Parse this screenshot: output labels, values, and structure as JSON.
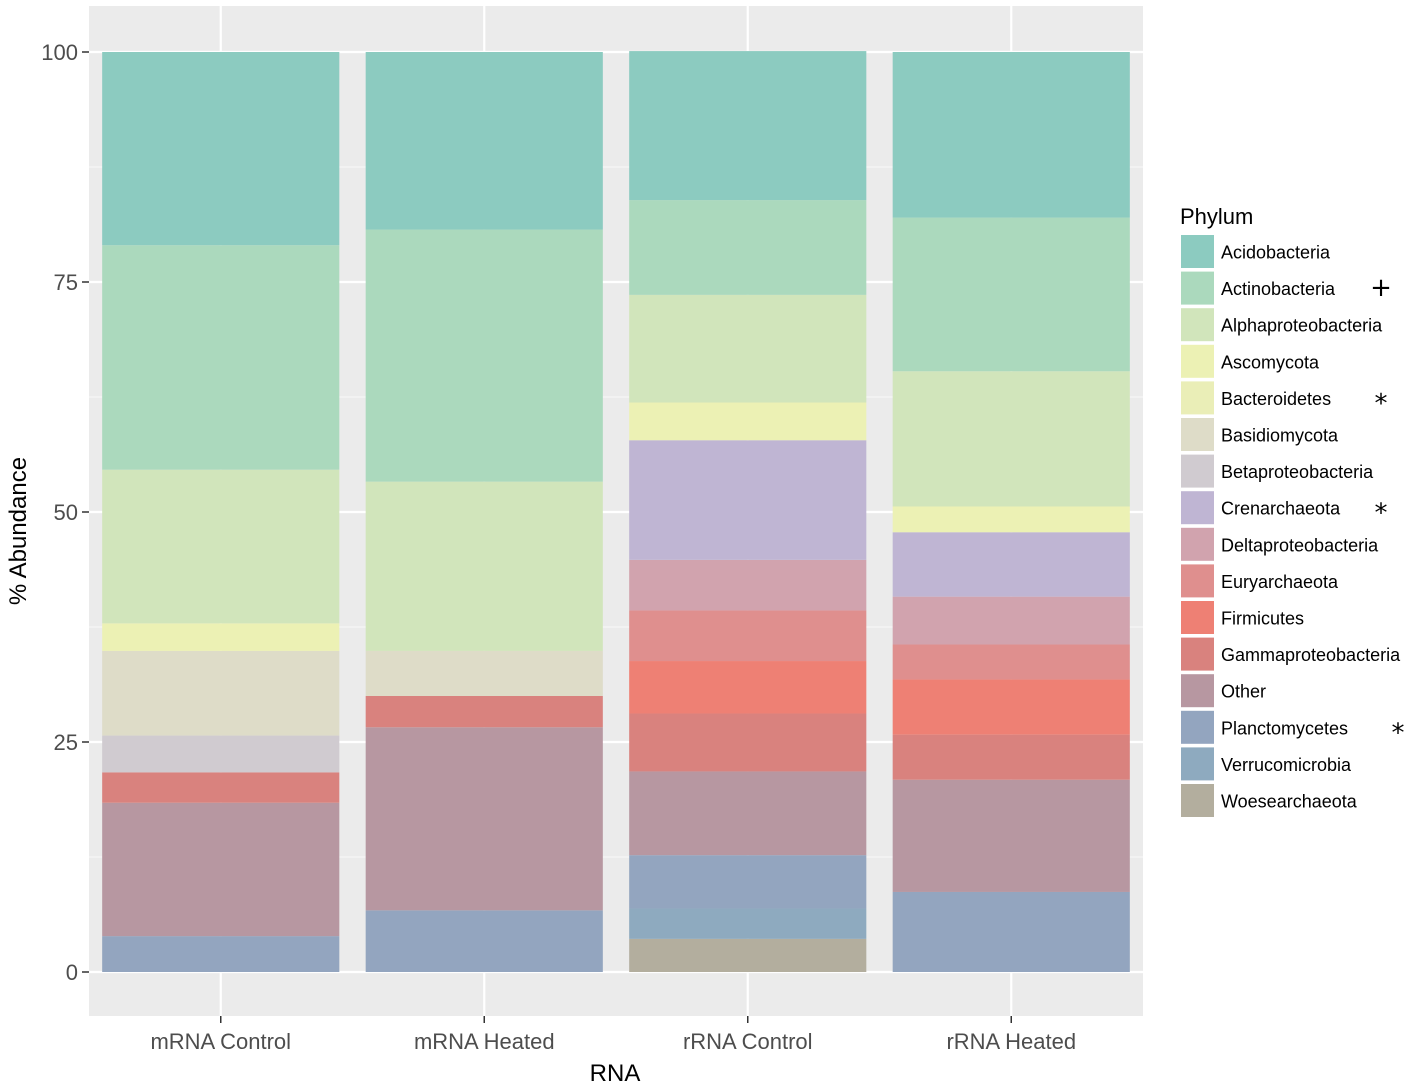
{
  "chart_data": {
    "type": "bar",
    "stacked": true,
    "title": "",
    "xlabel": "RNA",
    "ylabel": "% Abundance",
    "ylim": [
      -5,
      103
    ],
    "yticks": [
      0,
      25,
      50,
      75,
      100
    ],
    "grid": true,
    "categories": [
      "mRNA Control",
      "mRNA Heated",
      "rRNA Control",
      "rRNA Heated"
    ],
    "legend": {
      "title": "Phylum",
      "placement": "right"
    },
    "series": [
      {
        "name": "Woesearchaeota",
        "color": "#b3ae9e",
        "mark": "",
        "values": [
          0,
          0,
          3.6,
          0
        ]
      },
      {
        "name": "Verrucomicrobia",
        "color": "#8eaabf",
        "mark": "",
        "values": [
          0,
          0,
          3.3,
          0
        ]
      },
      {
        "name": "Planctomycetes",
        "color": "#93a5bf",
        "mark": "*",
        "values": [
          3.9,
          6.7,
          5.8,
          8.7
        ]
      },
      {
        "name": "Other",
        "color": "#b797a1",
        "mark": "",
        "values": [
          14.5,
          19.9,
          9.1,
          12.2
        ]
      },
      {
        "name": "Gammaproteobacteria",
        "color": "#d9827e",
        "mark": "",
        "values": [
          3.3,
          3.4,
          6.3,
          4.9
        ]
      },
      {
        "name": "Firmicutes",
        "color": "#ee8074",
        "mark": "",
        "values": [
          0,
          0,
          5.7,
          6.0
        ]
      },
      {
        "name": "Euryarchaeota",
        "color": "#df8f8e",
        "mark": "",
        "values": [
          0,
          0,
          5.5,
          3.8
        ]
      },
      {
        "name": "Deltaproteobacteria",
        "color": "#d1a3ae",
        "mark": "",
        "values": [
          0,
          0,
          5.5,
          5.2
        ]
      },
      {
        "name": "Crenarchaeota",
        "color": "#bfb5d3",
        "mark": "*",
        "values": [
          0,
          0,
          13.0,
          7.0
        ]
      },
      {
        "name": "Betaproteobacteria",
        "color": "#d0cbd0",
        "mark": "",
        "values": [
          4.0,
          0,
          0,
          0
        ]
      },
      {
        "name": "Basidiomycota",
        "color": "#dedcc8",
        "mark": "",
        "values": [
          9.2,
          4.9,
          0,
          0
        ]
      },
      {
        "name": "Bacteroidetes",
        "color": "#eaeeb7",
        "mark": "*",
        "values": [
          0,
          0,
          0,
          0
        ]
      },
      {
        "name": "Ascomycota",
        "color": "#ecf1b4",
        "mark": "",
        "values": [
          3.0,
          0,
          4.1,
          2.8
        ]
      },
      {
        "name": "Alphaproteobacteria",
        "color": "#d1e5bb",
        "mark": "",
        "values": [
          16.7,
          18.4,
          11.7,
          14.7
        ]
      },
      {
        "name": "Actinobacteria",
        "color": "#abd9bd",
        "mark": "+",
        "values": [
          24.4,
          27.4,
          10.3,
          16.7
        ]
      },
      {
        "name": "Acidobacteria",
        "color": "#8ccbc0",
        "mark": "",
        "values": [
          21.0,
          19.3,
          16.2,
          18.0
        ]
      }
    ],
    "legend_order": [
      "Acidobacteria",
      "Actinobacteria",
      "Alphaproteobacteria",
      "Ascomycota",
      "Bacteroidetes",
      "Basidiomycota",
      "Betaproteobacteria",
      "Crenarchaeota",
      "Deltaproteobacteria",
      "Euryarchaeota",
      "Firmicutes",
      "Gammaproteobacteria",
      "Other",
      "Planctomycetes",
      "Verrucomicrobia",
      "Woesearchaeota"
    ]
  },
  "colors": {
    "panel_background": "#ebebeb",
    "grid_major": "#ffffff",
    "grid_minor": "#f5f5f5",
    "tick_text": "#4d4d4d"
  }
}
